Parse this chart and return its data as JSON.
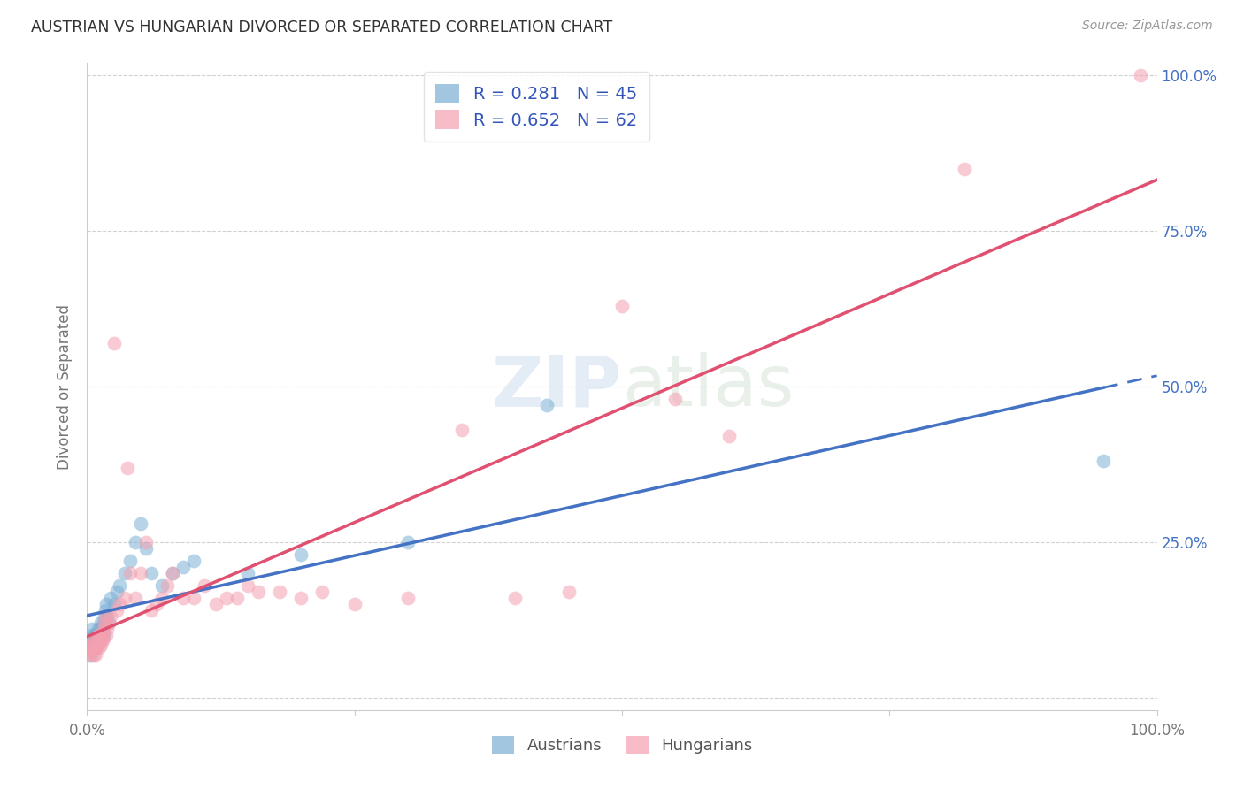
{
  "title": "AUSTRIAN VS HUNGARIAN DIVORCED OR SEPARATED CORRELATION CHART",
  "source": "Source: ZipAtlas.com",
  "ylabel": "Divorced or Separated",
  "watermark": "ZIPatlas",
  "xlim": [
    0.0,
    1.0
  ],
  "ylim": [
    -0.02,
    1.02
  ],
  "austrians_R": 0.281,
  "austrians_N": 45,
  "hungarians_R": 0.652,
  "hungarians_N": 62,
  "austrians_color": "#7BAFD4",
  "hungarians_color": "#F4A0B0",
  "austrians_line_color": "#4472C4",
  "hungarians_line_color": "#E05070",
  "legend_text_color": "#3355BB",
  "grid_color": "#CCCCCC",
  "background_color": "#FFFFFF",
  "austrians_x": [
    0.002,
    0.003,
    0.004,
    0.005,
    0.005,
    0.006,
    0.007,
    0.007,
    0.008,
    0.008,
    0.009,
    0.01,
    0.01,
    0.011,
    0.012,
    0.012,
    0.013,
    0.013,
    0.014,
    0.015,
    0.015,
    0.016,
    0.017,
    0.018,
    0.019,
    0.02,
    0.022,
    0.025,
    0.028,
    0.03,
    0.035,
    0.04,
    0.045,
    0.05,
    0.055,
    0.06,
    0.07,
    0.08,
    0.09,
    0.1,
    0.15,
    0.2,
    0.3,
    0.43,
    0.95
  ],
  "austrians_y": [
    0.08,
    0.09,
    0.07,
    0.1,
    0.11,
    0.08,
    0.09,
    0.1,
    0.08,
    0.1,
    0.09,
    0.1,
    0.11,
    0.09,
    0.1,
    0.11,
    0.1,
    0.12,
    0.11,
    0.1,
    0.12,
    0.13,
    0.14,
    0.15,
    0.13,
    0.12,
    0.16,
    0.15,
    0.17,
    0.18,
    0.2,
    0.22,
    0.25,
    0.28,
    0.24,
    0.2,
    0.18,
    0.2,
    0.21,
    0.22,
    0.2,
    0.23,
    0.25,
    0.47,
    0.38
  ],
  "hungarians_x": [
    0.002,
    0.003,
    0.004,
    0.005,
    0.005,
    0.006,
    0.007,
    0.007,
    0.008,
    0.008,
    0.009,
    0.01,
    0.01,
    0.011,
    0.012,
    0.012,
    0.013,
    0.013,
    0.014,
    0.015,
    0.015,
    0.016,
    0.017,
    0.018,
    0.019,
    0.02,
    0.022,
    0.025,
    0.028,
    0.03,
    0.035,
    0.038,
    0.04,
    0.045,
    0.05,
    0.055,
    0.06,
    0.065,
    0.07,
    0.075,
    0.08,
    0.09,
    0.1,
    0.11,
    0.12,
    0.13,
    0.14,
    0.15,
    0.16,
    0.18,
    0.2,
    0.22,
    0.25,
    0.3,
    0.35,
    0.4,
    0.45,
    0.5,
    0.55,
    0.6,
    0.82,
    0.985
  ],
  "hungarians_y": [
    0.07,
    0.08,
    0.075,
    0.08,
    0.09,
    0.07,
    0.08,
    0.09,
    0.07,
    0.085,
    0.08,
    0.09,
    0.1,
    0.08,
    0.09,
    0.1,
    0.085,
    0.095,
    0.09,
    0.095,
    0.11,
    0.12,
    0.13,
    0.1,
    0.11,
    0.12,
    0.13,
    0.57,
    0.14,
    0.15,
    0.16,
    0.37,
    0.2,
    0.16,
    0.2,
    0.25,
    0.14,
    0.15,
    0.16,
    0.18,
    0.2,
    0.16,
    0.16,
    0.18,
    0.15,
    0.16,
    0.16,
    0.18,
    0.17,
    0.17,
    0.16,
    0.17,
    0.15,
    0.16,
    0.43,
    0.16,
    0.17,
    0.63,
    0.48,
    0.42,
    0.85,
    1.0
  ]
}
